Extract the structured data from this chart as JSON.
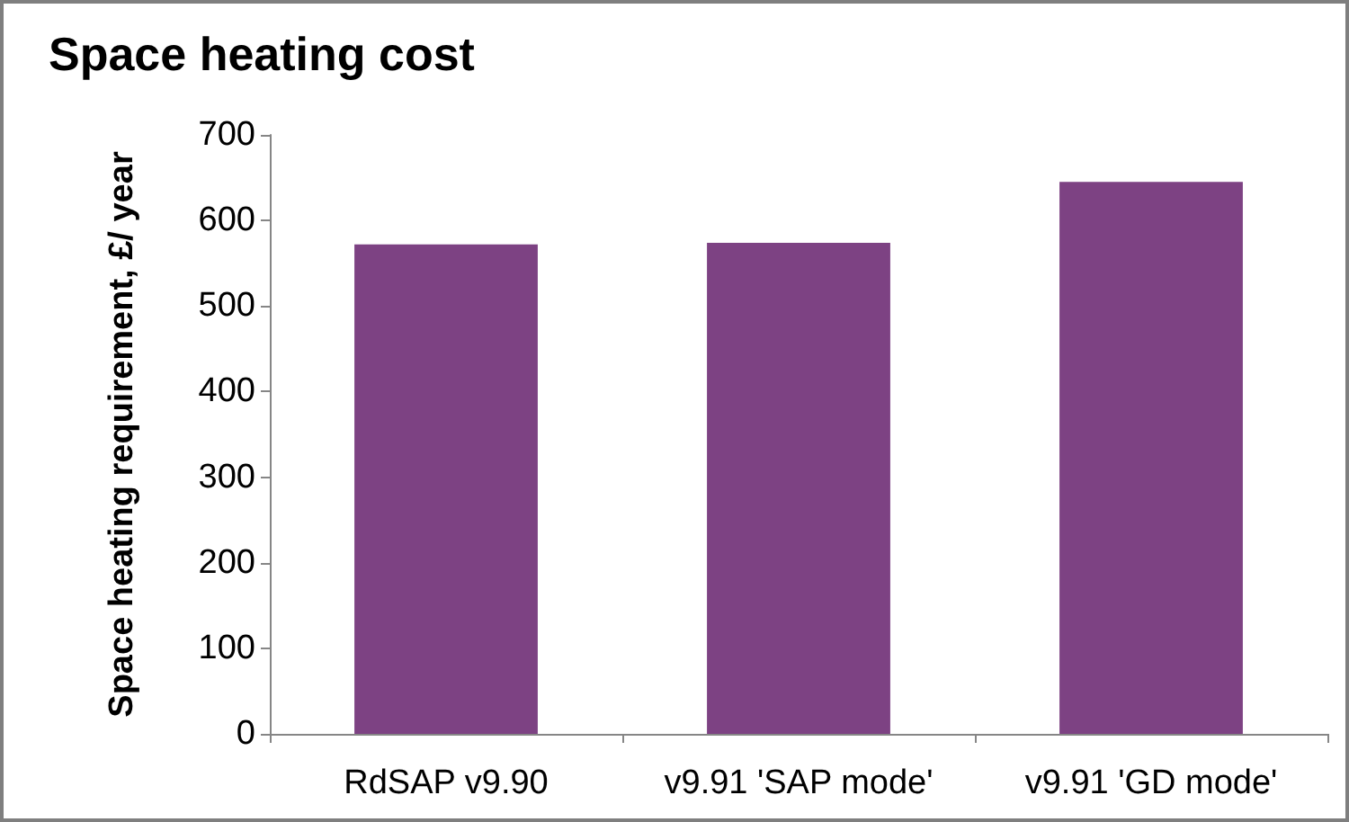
{
  "chart_data": {
    "type": "bar",
    "title": "Space heating cost",
    "ylabel": "Space heating requirement, £/ year",
    "categories": [
      "RdSAP v9.90",
      "v9.91 'SAP mode'",
      "v9.91 'GD mode'"
    ],
    "values": [
      572,
      574,
      645
    ],
    "color": "#7d4283",
    "ylim": [
      0,
      700
    ],
    "yticks": [
      0,
      100,
      200,
      300,
      400,
      500,
      600,
      700
    ],
    "grid": false
  }
}
